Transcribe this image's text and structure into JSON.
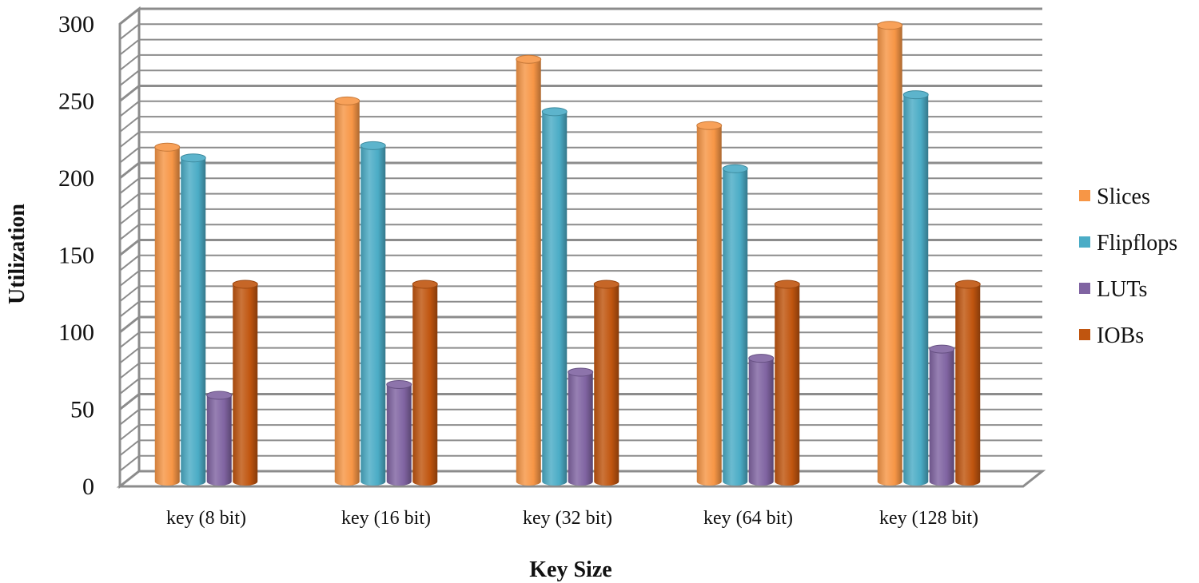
{
  "chart_data": {
    "type": "bar",
    "title": "",
    "xlabel": "Key Size",
    "ylabel": "Utilization",
    "ylim": [
      0,
      300
    ],
    "yticks": [
      0,
      50,
      100,
      150,
      200,
      250,
      300
    ],
    "ytick_labels": [
      "0",
      "50",
      "100",
      "150",
      "200",
      "250",
      "300"
    ],
    "grid": true,
    "legend_position": "right",
    "categories": [
      "key (8 bit)",
      "key (16 bit)",
      "key (32 bit)",
      "key (64 bit)",
      "key (128 bit)"
    ],
    "series": [
      {
        "name": "Slices",
        "color": "#F79646",
        "values": [
          218,
          248,
          275,
          232,
          297
        ]
      },
      {
        "name": "Flipflops",
        "color": "#4BACC6",
        "values": [
          211,
          219,
          241,
          204,
          252
        ]
      },
      {
        "name": "LUTs",
        "color": "#8064A2",
        "values": [
          57,
          64,
          72,
          81,
          87
        ]
      },
      {
        "name": "IOBs",
        "color": "#C0550F",
        "values": [
          129,
          129,
          129,
          129,
          129
        ]
      }
    ]
  }
}
